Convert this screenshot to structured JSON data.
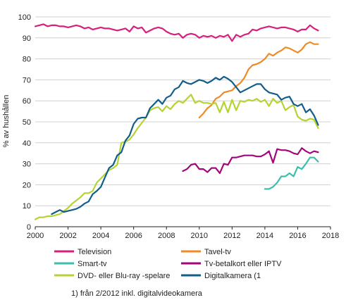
{
  "chart_data": {
    "type": "line",
    "ylabel": "% av hushållen",
    "xlim": [
      2000,
      2018
    ],
    "ylim": [
      0,
      100
    ],
    "x_ticks": [
      2000,
      2002,
      2004,
      2006,
      2008,
      2010,
      2012,
      2014,
      2016,
      2018
    ],
    "y_ticks": [
      0,
      10,
      20,
      30,
      40,
      50,
      60,
      70,
      80,
      90,
      100
    ],
    "grid": "horizontal",
    "legend_position": "bottom",
    "footnote": "1) från 2/2012 inkl. digitalvideokamera",
    "series": [
      {
        "name": "Television",
        "color": "#d6207e",
        "x": [
          2000.0,
          2000.25,
          2000.5,
          2000.75,
          2001.0,
          2001.25,
          2001.5,
          2001.75,
          2002.0,
          2002.25,
          2002.5,
          2002.75,
          2003.0,
          2003.25,
          2003.5,
          2003.75,
          2004.0,
          2004.25,
          2004.5,
          2004.75,
          2005.0,
          2005.25,
          2005.5,
          2005.75,
          2006.0,
          2006.25,
          2006.5,
          2006.75,
          2007.0,
          2007.25,
          2007.5,
          2007.75,
          2008.0,
          2008.25,
          2008.5,
          2008.75,
          2009.0,
          2009.25,
          2009.5,
          2009.75,
          2010.0,
          2010.25,
          2010.5,
          2010.75,
          2011.0,
          2011.25,
          2011.5,
          2011.75,
          2012.0,
          2012.25,
          2012.5,
          2012.75,
          2013.0,
          2013.25,
          2013.5,
          2013.75,
          2014.0,
          2014.25,
          2014.5,
          2014.75,
          2015.0,
          2015.25,
          2015.5,
          2015.75,
          2016.0,
          2016.25,
          2016.5,
          2016.75,
          2017.0,
          2017.25
        ],
        "values": [
          95.5,
          96.0,
          96.5,
          95.5,
          96.0,
          96.0,
          95.5,
          95.5,
          95.0,
          95.5,
          96.0,
          95.5,
          94.5,
          95.0,
          94.0,
          94.5,
          95.0,
          94.5,
          94.5,
          94.0,
          93.5,
          94.0,
          94.5,
          93.0,
          95.5,
          94.5,
          95.0,
          92.5,
          93.5,
          94.5,
          95.0,
          94.5,
          93.0,
          92.0,
          91.5,
          92.0,
          90.0,
          91.5,
          92.0,
          91.5,
          90.0,
          91.0,
          90.5,
          91.0,
          90.0,
          91.0,
          90.5,
          91.5,
          88.5,
          91.5,
          90.5,
          91.5,
          92.0,
          94.0,
          93.5,
          94.5,
          95.0,
          95.5,
          95.0,
          94.5,
          95.0,
          95.0,
          94.5,
          94.0,
          93.0,
          94.0,
          94.0,
          96.0,
          94.5,
          93.5
        ]
      },
      {
        "name": "Tavel-tv",
        "color": "#f08a24",
        "x": [
          2010.0,
          2010.25,
          2010.5,
          2010.75,
          2011.0,
          2011.25,
          2011.5,
          2011.75,
          2012.0,
          2012.25,
          2012.5,
          2012.75,
          2013.0,
          2013.25,
          2013.5,
          2013.75,
          2014.0,
          2014.25,
          2014.5,
          2014.75,
          2015.0,
          2015.25,
          2015.5,
          2015.75,
          2016.0,
          2016.25,
          2016.5,
          2016.75,
          2017.0,
          2017.25
        ],
        "values": [
          52.0,
          54.0,
          56.5,
          58.0,
          61.0,
          62.0,
          64.0,
          64.5,
          65.0,
          67.0,
          68.5,
          71.0,
          75.0,
          77.0,
          77.5,
          78.5,
          80.0,
          82.5,
          81.5,
          83.0,
          84.0,
          85.5,
          85.0,
          84.0,
          83.0,
          84.5,
          87.0,
          88.0,
          87.0,
          87.0
        ]
      },
      {
        "name": "Smart-tv",
        "color": "#3bbfad",
        "x": [
          2014.0,
          2014.25,
          2014.5,
          2014.75,
          2015.0,
          2015.25,
          2015.5,
          2015.75,
          2016.0,
          2016.25,
          2016.5,
          2016.75,
          2017.0,
          2017.25
        ],
        "values": [
          18.0,
          18.0,
          19.0,
          21.0,
          24.0,
          24.0,
          25.5,
          24.0,
          28.5,
          27.5,
          30.0,
          33.0,
          33.0,
          31.0
        ]
      },
      {
        "name": "Tv-betalkort eller IPTV",
        "color": "#a3057a",
        "x": [
          2009.0,
          2009.25,
          2009.5,
          2009.75,
          2010.0,
          2010.25,
          2010.5,
          2010.75,
          2011.0,
          2011.25,
          2011.5,
          2011.75,
          2012.0,
          2012.25,
          2012.5,
          2012.75,
          2013.0,
          2013.25,
          2013.5,
          2013.75,
          2014.0,
          2014.25,
          2014.5,
          2014.75,
          2015.0,
          2015.25,
          2015.5,
          2015.75,
          2016.0,
          2016.25,
          2016.5,
          2016.75,
          2017.0,
          2017.25
        ],
        "values": [
          26.5,
          27.5,
          29.5,
          30.0,
          27.5,
          27.5,
          26.0,
          28.0,
          28.0,
          25.5,
          30.0,
          29.5,
          33.0,
          33.0,
          33.5,
          34.0,
          34.0,
          34.0,
          33.5,
          33.5,
          34.5,
          36.0,
          30.5,
          37.0,
          36.5,
          36.5,
          36.0,
          35.0,
          34.5,
          37.5,
          36.0,
          35.0,
          36.0,
          35.5
        ]
      },
      {
        "name": "DVD- eller Blu-ray -spelare",
        "color": "#b5d334",
        "x": [
          2000.0,
          2000.25,
          2000.5,
          2000.75,
          2001.0,
          2001.25,
          2001.5,
          2001.75,
          2002.0,
          2002.25,
          2002.5,
          2002.75,
          2003.0,
          2003.25,
          2003.5,
          2003.75,
          2004.0,
          2004.25,
          2004.5,
          2004.75,
          2005.0,
          2005.25,
          2005.5,
          2005.75,
          2006.0,
          2006.25,
          2006.5,
          2006.75,
          2007.0,
          2007.25,
          2007.5,
          2007.75,
          2008.0,
          2008.25,
          2008.5,
          2008.75,
          2009.0,
          2009.25,
          2009.5,
          2009.75,
          2010.0,
          2010.25,
          2010.5,
          2010.75,
          2011.0,
          2011.25,
          2011.5,
          2011.75,
          2012.0,
          2012.25,
          2012.5,
          2012.75,
          2013.0,
          2013.25,
          2013.5,
          2013.75,
          2014.0,
          2014.25,
          2014.5,
          2014.75,
          2015.0,
          2015.25,
          2015.5,
          2015.75,
          2016.0,
          2016.25,
          2016.5,
          2016.75,
          2017.0,
          2017.25
        ],
        "values": [
          3.5,
          4.5,
          4.5,
          5.0,
          5.0,
          5.5,
          6.0,
          7.5,
          9.0,
          11.0,
          12.5,
          14.0,
          16.0,
          16.0,
          17.0,
          21.0,
          23.0,
          25.0,
          27.0,
          28.0,
          29.5,
          40.0,
          40.5,
          41.5,
          44.0,
          47.0,
          49.5,
          52.0,
          55.5,
          56.5,
          57.0,
          55.0,
          57.5,
          56.0,
          58.5,
          60.0,
          59.0,
          61.0,
          63.0,
          59.0,
          60.0,
          59.0,
          59.0,
          58.5,
          59.0,
          54.5,
          59.5,
          54.5,
          60.5,
          55.5,
          60.0,
          59.5,
          60.5,
          60.0,
          61.0,
          59.5,
          60.5,
          57.5,
          61.0,
          59.0,
          60.0,
          55.5,
          57.0,
          58.0,
          52.5,
          51.0,
          50.5,
          51.5,
          51.0,
          47.0
        ]
      },
      {
        "name": "Digitalkamera (1",
        "color": "#125e8a",
        "x": [
          2001.0,
          2001.25,
          2001.5,
          2001.75,
          2002.0,
          2002.25,
          2002.5,
          2002.75,
          2003.0,
          2003.25,
          2003.5,
          2003.75,
          2004.0,
          2004.25,
          2004.5,
          2004.75,
          2005.0,
          2005.25,
          2005.5,
          2005.75,
          2006.0,
          2006.25,
          2006.5,
          2006.75,
          2007.0,
          2007.25,
          2007.5,
          2007.75,
          2008.0,
          2008.25,
          2008.5,
          2008.75,
          2009.0,
          2009.25,
          2009.5,
          2009.75,
          2010.0,
          2010.25,
          2010.5,
          2010.75,
          2011.0,
          2011.25,
          2011.5,
          2011.75,
          2012.0,
          2012.25,
          2012.5,
          2012.75,
          2013.0,
          2013.25,
          2013.5,
          2013.75,
          2014.0,
          2014.25,
          2014.5,
          2014.75,
          2015.0,
          2015.25,
          2015.5,
          2015.75,
          2016.0,
          2016.25,
          2016.5,
          2016.75,
          2017.0,
          2017.25
        ],
        "values": [
          6.0,
          7.0,
          8.0,
          7.0,
          7.5,
          8.0,
          8.5,
          9.5,
          11.0,
          12.0,
          15.5,
          17.0,
          19.0,
          23.5,
          28.0,
          29.5,
          34.0,
          35.5,
          41.0,
          43.5,
          49.0,
          51.5,
          52.0,
          52.0,
          56.5,
          58.5,
          60.5,
          58.5,
          61.5,
          62.5,
          65.5,
          66.5,
          69.5,
          68.5,
          68.0,
          69.0,
          70.0,
          69.5,
          68.5,
          69.5,
          71.0,
          70.0,
          71.5,
          70.5,
          69.0,
          66.5,
          64.0,
          65.0,
          66.0,
          67.0,
          68.0,
          68.0,
          65.5,
          64.0,
          63.5,
          63.0,
          60.5,
          61.5,
          62.0,
          58.5,
          57.5,
          58.5,
          54.5,
          56.0,
          53.0,
          48.5
        ]
      }
    ]
  }
}
